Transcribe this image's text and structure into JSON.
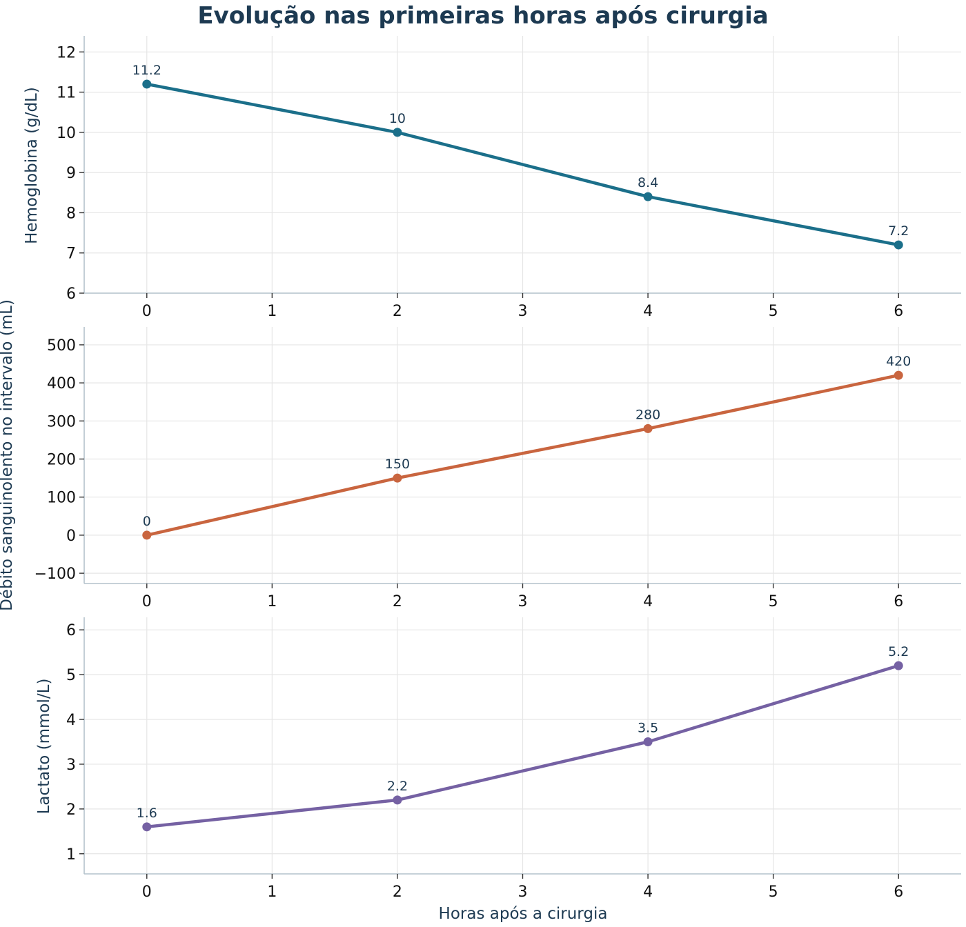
{
  "title": "Evolução nas primeiras horas após cirurgia",
  "xlabel": "Horas após a cirurgia",
  "chart_data": [
    {
      "type": "line",
      "ylabel": "Hemoglobina (g/dL)",
      "x": [
        0,
        2,
        4,
        6
      ],
      "values": [
        11.2,
        10,
        8.4,
        7.2
      ],
      "labels": [
        "11.2",
        "10",
        "8.4",
        "7.2"
      ],
      "color": "#1b6f8a",
      "xlim": [
        -0.5,
        6.5
      ],
      "ylim": [
        6,
        12.4
      ],
      "xticks": [
        0,
        1,
        2,
        3,
        4,
        5,
        6
      ],
      "yticks": [
        6,
        7,
        8,
        9,
        10,
        11,
        12
      ],
      "ytick_labels": [
        "6",
        "7",
        "8",
        "9",
        "10",
        "11",
        "12"
      ],
      "grid": true
    },
    {
      "type": "line",
      "ylabel": "Débito sanguinolento no intervalo (mL)",
      "x": [
        0,
        2,
        4,
        6
      ],
      "values": [
        0,
        150,
        280,
        420
      ],
      "labels": [
        "0",
        "150",
        "280",
        "420"
      ],
      "color": "#c9653f",
      "xlim": [
        -0.5,
        6.5
      ],
      "ylim": [
        -127,
        547
      ],
      "xticks": [
        0,
        1,
        2,
        3,
        4,
        5,
        6
      ],
      "yticks": [
        -100,
        0,
        100,
        200,
        300,
        400,
        500
      ],
      "ytick_labels": [
        "−100",
        "0",
        "100",
        "200",
        "300",
        "400",
        "500"
      ],
      "grid": true
    },
    {
      "type": "line",
      "ylabel": "Lactato (mmol/L)",
      "x": [
        0,
        2,
        4,
        6
      ],
      "values": [
        1.6,
        2.2,
        3.5,
        5.2
      ],
      "labels": [
        "1.6",
        "2.2",
        "3.5",
        "5.2"
      ],
      "color": "#7561a3",
      "xlim": [
        -0.5,
        6.5
      ],
      "ylim": [
        0.55,
        6.28
      ],
      "xticks": [
        0,
        1,
        2,
        3,
        4,
        5,
        6
      ],
      "yticks": [
        1,
        2,
        3,
        4,
        5,
        6
      ],
      "ytick_labels": [
        "1",
        "2",
        "3",
        "4",
        "5",
        "6"
      ],
      "grid": true
    }
  ]
}
